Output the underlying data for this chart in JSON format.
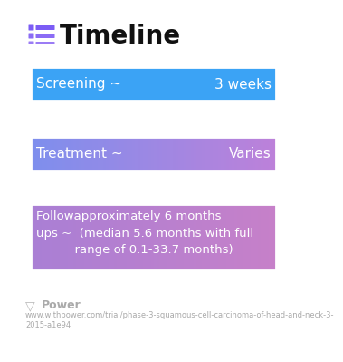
{
  "title": "Timeline",
  "background_color": "#ffffff",
  "title_fontsize": 20,
  "title_color": "#111111",
  "icon_colors": [
    "#7B5CF5",
    "#8B6CF5",
    "#9B7CF5"
  ],
  "rows": [
    {
      "label_left": "Screening ~",
      "label_right": "3 weeks",
      "color_start": "#3BA3F5",
      "color_end": "#3BA3F5",
      "text_color": "#ffffff",
      "font_size": 11,
      "multiline": false
    },
    {
      "label_left": "Treatment ~",
      "label_right": "Varies",
      "color_start": "#7B8FEE",
      "color_end": "#C080D8",
      "text_color": "#ffffff",
      "font_size": 11,
      "multiline": false
    },
    {
      "label_left": "Followapproximately 6 months\nups ~  (median 5.6 months with full\n          range of 0.1-33.7 months)",
      "label_right": "",
      "color_start": "#A87FD5",
      "color_end": "#C880C8",
      "text_color": "#ffffff",
      "font_size": 9.5,
      "multiline": true
    }
  ],
  "footer_text": "Power",
  "footer_url": "www.withpower.com/trial/phase-3-squamous-cell-carcinoma-of-head-and-neck-3-\n2015-a1e94",
  "footer_color": "#aaaaaa",
  "footer_fontsize": 6.0
}
